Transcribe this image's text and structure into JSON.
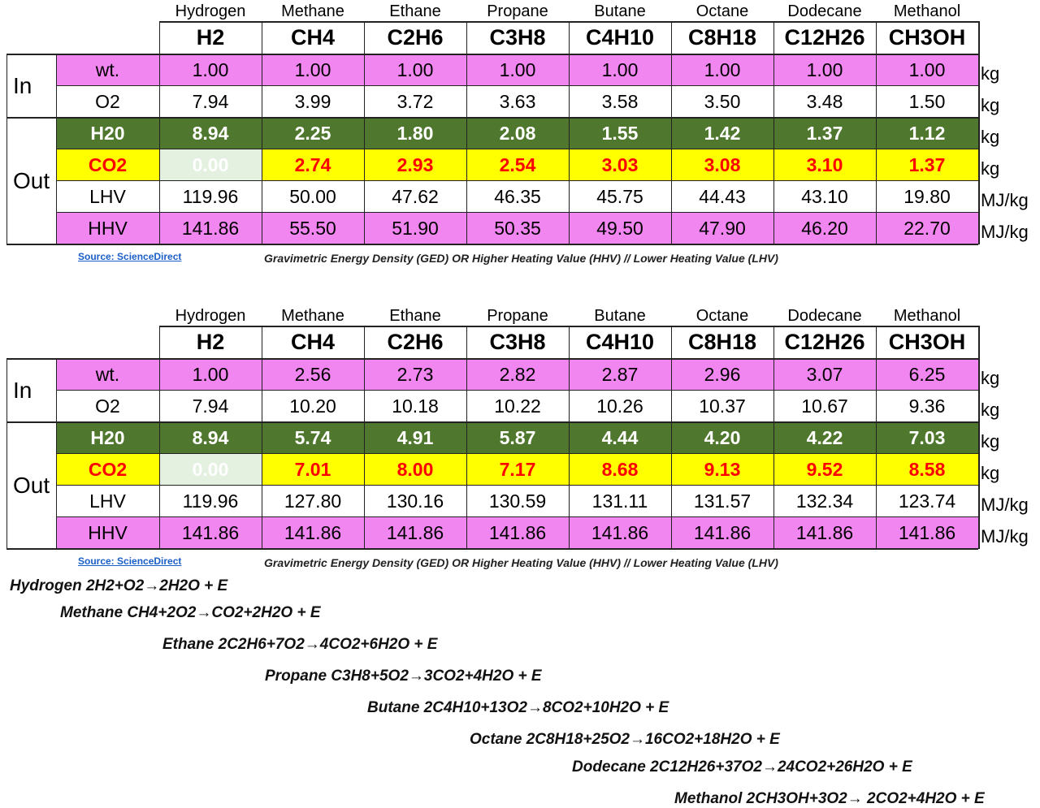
{
  "colors": {
    "pink": "#f186f1",
    "green": "#4f772d",
    "yellow": "#ffff00",
    "red": "#ff0000",
    "co2_zero_bg": "#e4f1e1",
    "link": "#1a5ec7"
  },
  "tables": [
    {
      "names": [
        "Hydrogen",
        "Methane",
        "Ethane",
        "Propane",
        "Butane",
        "Octane",
        "Dodecane",
        "Methanol"
      ],
      "formulas": [
        "H2",
        "CH4",
        "C2H6",
        "C3H8",
        "C4H10",
        "C8H18",
        "C12H26",
        "CH3OH"
      ],
      "groups": {
        "in": "In",
        "out": "Out"
      },
      "rows": [
        {
          "label": "wt.",
          "style": "pink",
          "unit": "kg",
          "values": [
            "1.00",
            "1.00",
            "1.00",
            "1.00",
            "1.00",
            "1.00",
            "1.00",
            "1.00"
          ]
        },
        {
          "label": "O2",
          "style": "white",
          "unit": "kg",
          "values": [
            "7.94",
            "3.99",
            "3.72",
            "3.63",
            "3.58",
            "3.50",
            "3.48",
            "1.50"
          ]
        },
        {
          "label": "H20",
          "style": "green",
          "unit": "kg",
          "values": [
            "8.94",
            "2.25",
            "1.80",
            "2.08",
            "1.55",
            "1.42",
            "1.37",
            "1.12"
          ]
        },
        {
          "label": "CO2",
          "style": "yellow",
          "unit": "kg",
          "values": [
            "0.00",
            "2.74",
            "2.93",
            "2.54",
            "3.03",
            "3.08",
            "3.10",
            "1.37"
          ]
        },
        {
          "label": "LHV",
          "style": "white",
          "unit": "MJ/kg",
          "values": [
            "119.96",
            "50.00",
            "47.62",
            "46.35",
            "45.75",
            "44.43",
            "43.10",
            "19.80"
          ]
        },
        {
          "label": "HHV",
          "style": "pink",
          "unit": "MJ/kg",
          "values": [
            "141.86",
            "55.50",
            "51.90",
            "50.35",
            "49.50",
            "47.90",
            "46.20",
            "22.70"
          ]
        }
      ],
      "source": "Source: ScienceDirect",
      "note": "Gravimetric Energy Density (GED) OR Higher Heating Value (HHV) // Lower Heating Value (LHV)"
    },
    {
      "names": [
        "Hydrogen",
        "Methane",
        "Ethane",
        "Propane",
        "Butane",
        "Octane",
        "Dodecane",
        "Methanol"
      ],
      "formulas": [
        "H2",
        "CH4",
        "C2H6",
        "C3H8",
        "C4H10",
        "C8H18",
        "C12H26",
        "CH3OH"
      ],
      "groups": {
        "in": "In",
        "out": "Out"
      },
      "rows": [
        {
          "label": "wt.",
          "style": "pink",
          "unit": "kg",
          "values": [
            "1.00",
            "2.56",
            "2.73",
            "2.82",
            "2.87",
            "2.96",
            "3.07",
            "6.25"
          ]
        },
        {
          "label": "O2",
          "style": "white",
          "unit": "kg",
          "values": [
            "7.94",
            "10.20",
            "10.18",
            "10.22",
            "10.26",
            "10.37",
            "10.67",
            "9.36"
          ]
        },
        {
          "label": "H20",
          "style": "green",
          "unit": "kg",
          "values": [
            "8.94",
            "5.74",
            "4.91",
            "5.87",
            "4.44",
            "4.20",
            "4.22",
            "7.03"
          ]
        },
        {
          "label": "CO2",
          "style": "yellow",
          "unit": "kg",
          "values": [
            "0.00",
            "7.01",
            "8.00",
            "7.17",
            "8.68",
            "9.13",
            "9.52",
            "8.58"
          ]
        },
        {
          "label": "LHV",
          "style": "white",
          "unit": "MJ/kg",
          "values": [
            "119.96",
            "127.80",
            "130.16",
            "130.59",
            "131.11",
            "131.57",
            "132.34",
            "123.74"
          ]
        },
        {
          "label": "HHV",
          "style": "pink",
          "unit": "MJ/kg",
          "values": [
            "141.86",
            "141.86",
            "141.86",
            "141.86",
            "141.86",
            "141.86",
            "141.86",
            "141.86"
          ]
        }
      ],
      "source": "Source: ScienceDirect",
      "note": "Gravimetric Energy Density (GED) OR Higher Heating Value (HHV) // Lower Heating Value (LHV)"
    }
  ],
  "equations": [
    "Hydrogen 2H2+O2→2H2O + E",
    "Methane CH4+2O2→CO2+2H2O + E",
    "Ethane 2C2H6+7O2→4CO2+6H2O + E",
    "Propane C3H8+5O2→3CO2+4H2O + E",
    "Butane 2C4H10+13O2→8CO2+10H2O + E",
    "Octane 2C8H18+25O2→16CO2+18H2O + E",
    "Dodecane 2C12H26+37O2→24CO2+26H2O + E",
    "Methanol 2CH3OH+3O2→  2CO2+4H2O + E"
  ]
}
